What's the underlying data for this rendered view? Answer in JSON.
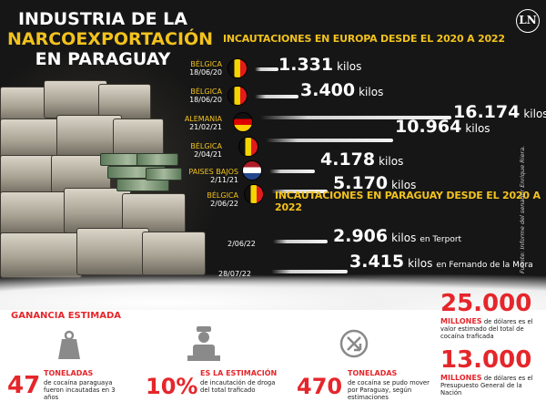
{
  "title": {
    "line1": "INDUSTRIA DE LA",
    "line2": "NARCOEXPORTACIÓN",
    "line3": "EN PARAGUAY"
  },
  "logo": "LN",
  "europe": {
    "heading": "INCAUTACIONES EN EUROPA DESDE EL 2020 A 2022",
    "rows": [
      {
        "country": "BÉLGICA",
        "date": "18/06/20",
        "flag": "belgium",
        "amount": "1.331",
        "unit": "kilos"
      },
      {
        "country": "BÉLGICA",
        "date": "18/06/20",
        "flag": "belgium",
        "amount": "3.400",
        "unit": "kilos"
      },
      {
        "country": "ALEMANIA",
        "date": "21/02/21",
        "flag": "germany",
        "amount": "16.174",
        "unit": "kilos"
      },
      {
        "country": "BÉLGICA",
        "date": "2/04/21",
        "flag": "belgium",
        "amount": "10.964",
        "unit": "kilos"
      },
      {
        "country": "PAISES BAJOS",
        "date": "2/11/21",
        "flag": "netherlands",
        "amount": "4.178",
        "unit": "kilos"
      },
      {
        "country": "BÉLGICA",
        "date": "2/06/22",
        "flag": "belgium",
        "amount": "5.170",
        "unit": "kilos"
      }
    ]
  },
  "paraguay": {
    "heading": "INCAUTACIONES EN PARAGUAY DESDE EL 2020 A 2022",
    "rows": [
      {
        "date": "2/06/22",
        "amount": "2.906",
        "unit": "kilos",
        "place": "en Terport"
      },
      {
        "date": "28/07/22",
        "amount": "3.415",
        "unit": "kilos",
        "place": "en Fernando de la Mora"
      }
    ]
  },
  "source": "Fuente: Informe del senador Enrique Riera.",
  "bottom": {
    "ganancia_heading": "GANANCIA ESTIMADA",
    "stat1": {
      "number": "47",
      "label": "TONELADAS",
      "desc": "de cocaína paraguaya fueron incautadas en 3 años"
    },
    "stat2": {
      "number": "10%",
      "label": "ES LA ESTIMACIÓN",
      "desc": "de incautación de droga del total traficado"
    },
    "stat3": {
      "number": "470",
      "label": "TONELADAS",
      "desc": "de cocaína se pudo mover por Paraguay, según estimaciones"
    },
    "stat4": {
      "number": "25.000",
      "label": "MILLONES",
      "label_rest": "de dólares",
      "desc": "es el valor estimado del total de cocaína traficada"
    },
    "stat5": {
      "number": "13.000",
      "label": "MILLONES",
      "label_rest": "de dólares",
      "desc": "es el Presupuesto General de la Nación"
    }
  },
  "colors": {
    "accent": "#f2c21d",
    "red": "#e5262b",
    "dark": "#161616"
  },
  "icons": [
    "weight-icon",
    "worker-icon",
    "recycle-arrows-icon"
  ]
}
